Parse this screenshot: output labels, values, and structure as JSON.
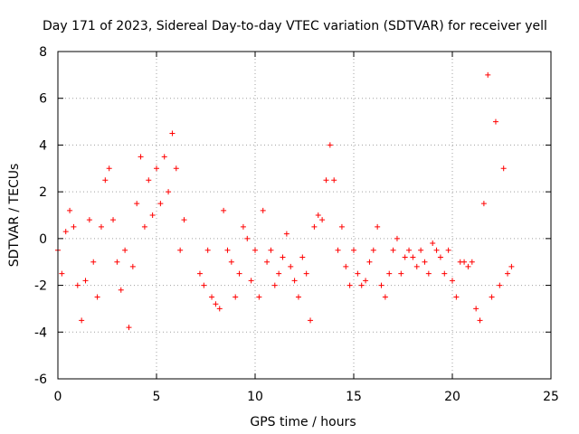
{
  "chart_data": {
    "type": "scatter",
    "title": "Day 171 of 2023, Sidereal Day-to-day VTEC variation (SDTVAR) for receiver yell",
    "xlabel": "GPS time / hours",
    "ylabel": "SDTVAR / TECUs",
    "xlim": [
      0,
      25
    ],
    "ylim": [
      -6,
      8
    ],
    "xticks": [
      0,
      5,
      10,
      15,
      20,
      25
    ],
    "yticks": [
      -6,
      -4,
      -2,
      0,
      2,
      4,
      6,
      8
    ],
    "grid": true,
    "marker": "+",
    "color": "#ff0000",
    "series": [
      {
        "name": "SDTVAR",
        "x": [
          0.0,
          0.2,
          0.4,
          0.6,
          0.8,
          1.0,
          1.2,
          1.4,
          1.6,
          1.8,
          2.0,
          2.2,
          2.4,
          2.6,
          2.8,
          3.0,
          3.2,
          3.4,
          3.6,
          3.8,
          4.0,
          4.2,
          4.4,
          4.6,
          4.8,
          5.0,
          5.2,
          5.4,
          5.6,
          5.8,
          6.0,
          6.2,
          6.4,
          6.6,
          6.8,
          7.0,
          7.2,
          7.4,
          7.6,
          7.8,
          8.0,
          8.2,
          8.4,
          8.6,
          8.8,
          9.0,
          9.2,
          9.4,
          9.6,
          9.8,
          10.0,
          10.2,
          10.4,
          10.6,
          10.8,
          11.0,
          11.2,
          11.4,
          11.6,
          11.8,
          12.0,
          12.2,
          12.4,
          12.6,
          12.8,
          13.0,
          13.2,
          13.4,
          13.6,
          13.8,
          14.0,
          14.2,
          14.4,
          14.6,
          14.8,
          15.0,
          15.2,
          15.4,
          15.6,
          15.8,
          16.0,
          16.2,
          16.4,
          16.6,
          16.8,
          17.0,
          17.2,
          17.4,
          17.6,
          17.8,
          18.0,
          18.2,
          18.4,
          18.6,
          18.8,
          19.0,
          19.2,
          19.4,
          19.6,
          19.8,
          20.0,
          20.2,
          20.4,
          20.6,
          20.8,
          21.0,
          21.2,
          21.4,
          21.6,
          21.8,
          22.0,
          22.2,
          22.4,
          22.6,
          22.8,
          23.0
        ],
        "y": [
          -0.5,
          -1.5,
          0.3,
          1.2,
          0.5,
          -2.0,
          -3.5,
          -1.8,
          0.8,
          -1.0,
          -2.5,
          0.5,
          2.5,
          3.0,
          0.8,
          -1.0,
          -2.2,
          -0.5,
          -3.8,
          -1.2,
          1.5,
          3.5,
          0.5,
          2.5,
          1.0,
          3.0,
          1.5,
          3.5,
          2.0,
          4.5,
          3.0,
          -0.5,
          0.8,
          null,
          null,
          null,
          -1.5,
          -2.0,
          -0.5,
          -2.5,
          -2.8,
          -3.0,
          1.2,
          -0.5,
          -1.0,
          -2.5,
          -1.5,
          0.5,
          0.0,
          -1.8,
          -0.5,
          -2.5,
          1.2,
          -1.0,
          -0.5,
          -2.0,
          -1.5,
          -0.8,
          0.2,
          -1.2,
          -1.8,
          -2.5,
          -0.8,
          -1.5,
          -3.5,
          0.5,
          1.0,
          0.8,
          2.5,
          4.0,
          2.5,
          -0.5,
          0.5,
          -1.2,
          -2.0,
          -0.5,
          -1.5,
          -2.0,
          -1.8,
          -1.0,
          -0.5,
          0.5,
          -2.0,
          -2.5,
          -1.5,
          -0.5,
          0.0,
          -1.5,
          -0.8,
          -0.5,
          -0.8,
          -1.2,
          -0.5,
          -1.0,
          -1.5,
          -0.2,
          -0.5,
          -0.8,
          -1.5,
          -0.5,
          -1.8,
          -2.5,
          -1.0,
          -1.0,
          -1.2,
          -1.0,
          -3.0,
          -3.5,
          1.5,
          7.0,
          -2.5,
          5.0,
          -2.0,
          3.0,
          -1.5,
          -1.2
        ]
      }
    ]
  }
}
